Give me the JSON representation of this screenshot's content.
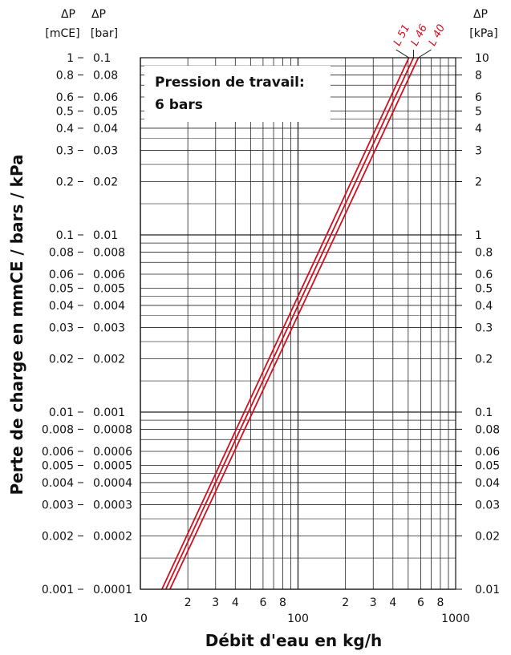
{
  "chart_data": {
    "type": "line",
    "x_scale": "log",
    "y_scale": "log",
    "xlim": [
      10,
      1000
    ],
    "ylim_mce": [
      0.001,
      1
    ],
    "xlabel": "Débit d'eau en kg/h",
    "ylabel": "Perte de charge en mmCE / bars / kPa",
    "annotation": [
      "Pression de travail:",
      "6 bars"
    ],
    "grid": true,
    "axes": {
      "left_mce": {
        "header": [
          "ΔP",
          "[mCE]"
        ],
        "ticks": [
          {
            "v": 1,
            "t": "1"
          },
          {
            "v": 0.8,
            "t": "0.8"
          },
          {
            "v": 0.6,
            "t": "0.6"
          },
          {
            "v": 0.5,
            "t": "0.5"
          },
          {
            "v": 0.4,
            "t": "0.4"
          },
          {
            "v": 0.3,
            "t": "0.3"
          },
          {
            "v": 0.2,
            "t": "0.2"
          },
          {
            "v": 0.1,
            "t": "0.1"
          },
          {
            "v": 0.08,
            "t": "0.08"
          },
          {
            "v": 0.06,
            "t": "0.06"
          },
          {
            "v": 0.05,
            "t": "0.05"
          },
          {
            "v": 0.04,
            "t": "0.04"
          },
          {
            "v": 0.03,
            "t": "0.03"
          },
          {
            "v": 0.02,
            "t": "0.02"
          },
          {
            "v": 0.01,
            "t": "0.01"
          },
          {
            "v": 0.008,
            "t": "0.008"
          },
          {
            "v": 0.006,
            "t": "0.006"
          },
          {
            "v": 0.005,
            "t": "0.005"
          },
          {
            "v": 0.004,
            "t": "0.004"
          },
          {
            "v": 0.003,
            "t": "0.003"
          },
          {
            "v": 0.002,
            "t": "0.002"
          },
          {
            "v": 0.001,
            "t": "0.001"
          }
        ]
      },
      "left_bar": {
        "header": [
          "ΔP",
          "[bar]"
        ],
        "ticks": [
          {
            "v": 1,
            "t": "0.1"
          },
          {
            "v": 0.8,
            "t": "0.08"
          },
          {
            "v": 0.6,
            "t": "0.06"
          },
          {
            "v": 0.5,
            "t": "0.05"
          },
          {
            "v": 0.4,
            "t": "0.04"
          },
          {
            "v": 0.3,
            "t": "0.03"
          },
          {
            "v": 0.2,
            "t": "0.02"
          },
          {
            "v": 0.1,
            "t": "0.01"
          },
          {
            "v": 0.08,
            "t": "0.008"
          },
          {
            "v": 0.06,
            "t": "0.006"
          },
          {
            "v": 0.05,
            "t": "0.005"
          },
          {
            "v": 0.04,
            "t": "0.004"
          },
          {
            "v": 0.03,
            "t": "0.003"
          },
          {
            "v": 0.02,
            "t": "0.002"
          },
          {
            "v": 0.01,
            "t": "0.001"
          },
          {
            "v": 0.008,
            "t": "0.0008"
          },
          {
            "v": 0.006,
            "t": "0.0006"
          },
          {
            "v": 0.005,
            "t": "0.0005"
          },
          {
            "v": 0.004,
            "t": "0.0004"
          },
          {
            "v": 0.003,
            "t": "0.0003"
          },
          {
            "v": 0.002,
            "t": "0.0002"
          },
          {
            "v": 0.001,
            "t": "0.0001"
          }
        ]
      },
      "right_kpa": {
        "header": [
          "ΔP",
          "[kPa]"
        ],
        "ticks": [
          {
            "v": 1,
            "t": "10"
          },
          {
            "v": 0.8,
            "t": "8"
          },
          {
            "v": 0.6,
            "t": "6"
          },
          {
            "v": 0.5,
            "t": "5"
          },
          {
            "v": 0.4,
            "t": "4"
          },
          {
            "v": 0.3,
            "t": "3"
          },
          {
            "v": 0.2,
            "t": "2"
          },
          {
            "v": 0.1,
            "t": "1"
          },
          {
            "v": 0.08,
            "t": "0.8"
          },
          {
            "v": 0.06,
            "t": "0.6"
          },
          {
            "v": 0.05,
            "t": "0.5"
          },
          {
            "v": 0.04,
            "t": "0.4"
          },
          {
            "v": 0.03,
            "t": "0.3"
          },
          {
            "v": 0.02,
            "t": "0.2"
          },
          {
            "v": 0.01,
            "t": "0.1"
          },
          {
            "v": 0.008,
            "t": "0.08"
          },
          {
            "v": 0.006,
            "t": "0.06"
          },
          {
            "v": 0.005,
            "t": "0.05"
          },
          {
            "v": 0.004,
            "t": "0.04"
          },
          {
            "v": 0.003,
            "t": "0.03"
          },
          {
            "v": 0.002,
            "t": "0.02"
          },
          {
            "v": 0.001,
            "t": "0.01"
          }
        ]
      },
      "bottom": {
        "major_ticks": [
          {
            "v": 10,
            "t": "10"
          },
          {
            "v": 100,
            "t": "100"
          },
          {
            "v": 1000,
            "t": "1000"
          }
        ],
        "minor_ticks": [
          {
            "v": 20,
            "t": "2"
          },
          {
            "v": 30,
            "t": "3"
          },
          {
            "v": 40,
            "t": "4"
          },
          {
            "v": 60,
            "t": "6"
          },
          {
            "v": 80,
            "t": "8"
          },
          {
            "v": 200,
            "t": "2"
          },
          {
            "v": 300,
            "t": "3"
          },
          {
            "v": 400,
            "t": "4"
          },
          {
            "v": 600,
            "t": "6"
          },
          {
            "v": 800,
            "t": "8"
          }
        ]
      }
    },
    "series": [
      {
        "name": "L 51",
        "color": "#d0101e",
        "x": [
          13.7,
          505
        ],
        "y_mce": [
          0.001,
          1
        ]
      },
      {
        "name": "L 46",
        "color": "#d0101e",
        "x": [
          14.5,
          540
        ],
        "y_mce": [
          0.001,
          1
        ]
      },
      {
        "name": "L 40",
        "color": "#d0101e",
        "x": [
          15.4,
          580
        ],
        "y_mce": [
          0.001,
          1
        ]
      }
    ]
  }
}
